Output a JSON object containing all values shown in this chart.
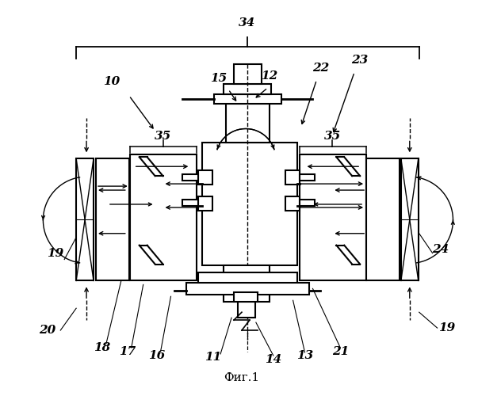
{
  "title": "Фиг.1",
  "bg_color": "#ffffff",
  "line_color": "#000000",
  "figsize": [
    6.03,
    5.0
  ],
  "dpi": 100
}
